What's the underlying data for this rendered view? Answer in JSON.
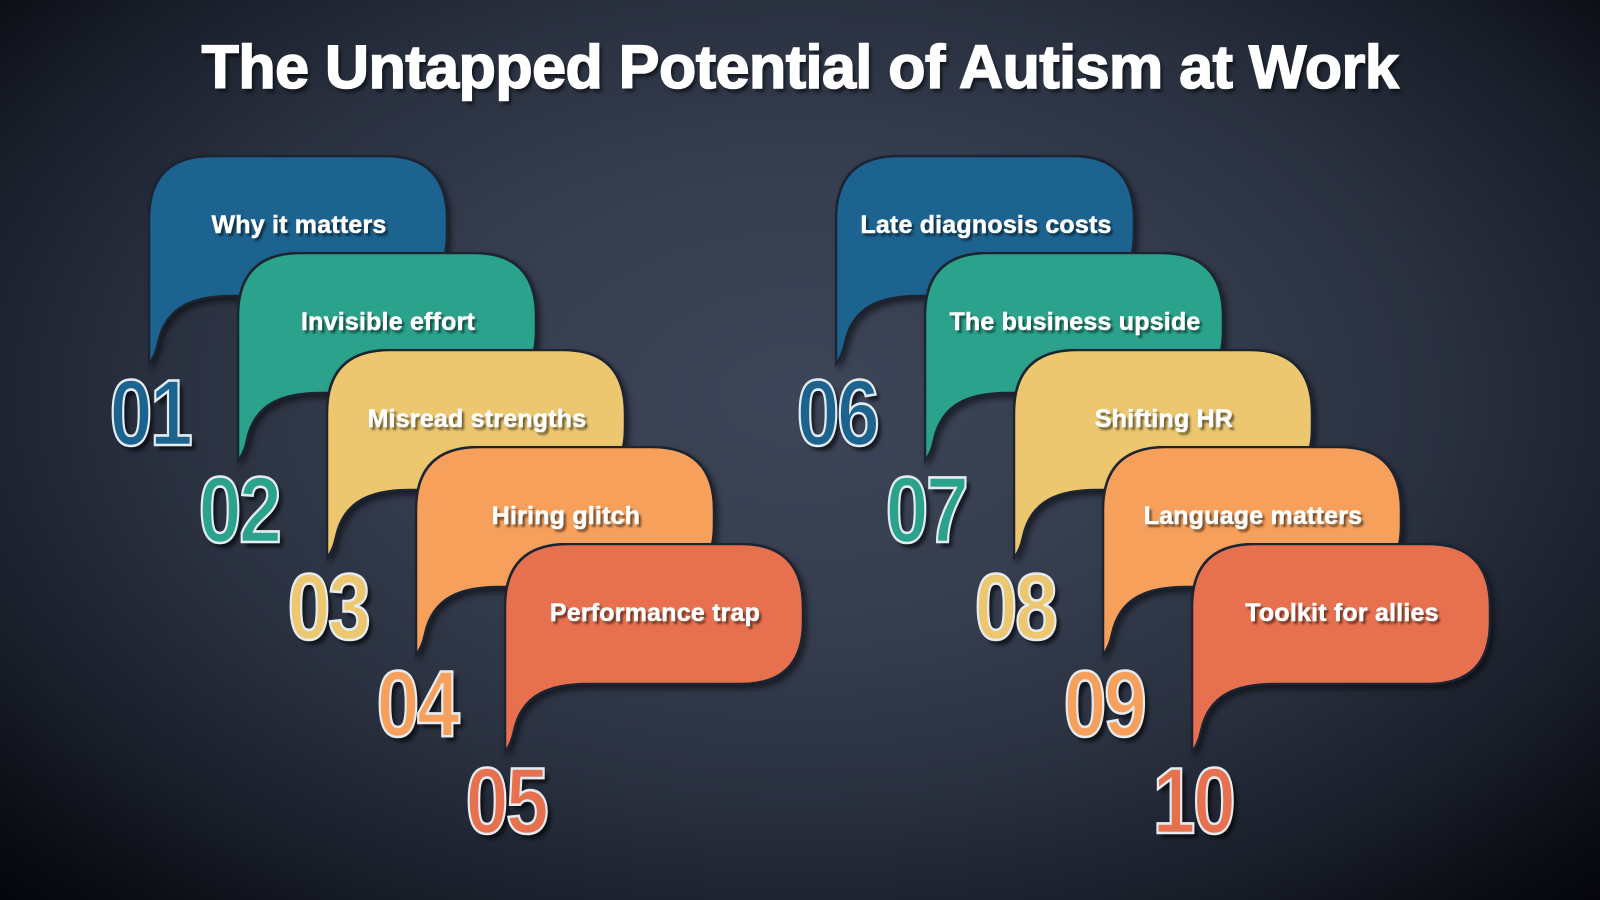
{
  "title": "The Untapped Potential of Autism at Work",
  "palette": {
    "blue": "#1d6390",
    "teal": "#2aa28c",
    "yellow": "#ecc76f",
    "orange": "#f6a05c",
    "red": "#e7714f"
  },
  "background": {
    "center": "#3d4558",
    "edge": "#04050a"
  },
  "items": [
    {
      "number": "01",
      "label": "Why it matters",
      "color": "blue"
    },
    {
      "number": "02",
      "label": "Invisible effort",
      "color": "teal"
    },
    {
      "number": "03",
      "label": "Misread strengths",
      "color": "yellow"
    },
    {
      "number": "04",
      "label": "Hiring glitch",
      "color": "orange"
    },
    {
      "number": "05",
      "label": "Performance trap",
      "color": "red"
    },
    {
      "number": "06",
      "label": "Late diagnosis costs",
      "color": "blue"
    },
    {
      "number": "07",
      "label": "The business upside",
      "color": "teal"
    },
    {
      "number": "08",
      "label": "Shifting HR",
      "color": "yellow"
    },
    {
      "number": "09",
      "label": "Language matters",
      "color": "orange"
    },
    {
      "number": "10",
      "label": "Toolkit for allies",
      "color": "red"
    }
  ]
}
